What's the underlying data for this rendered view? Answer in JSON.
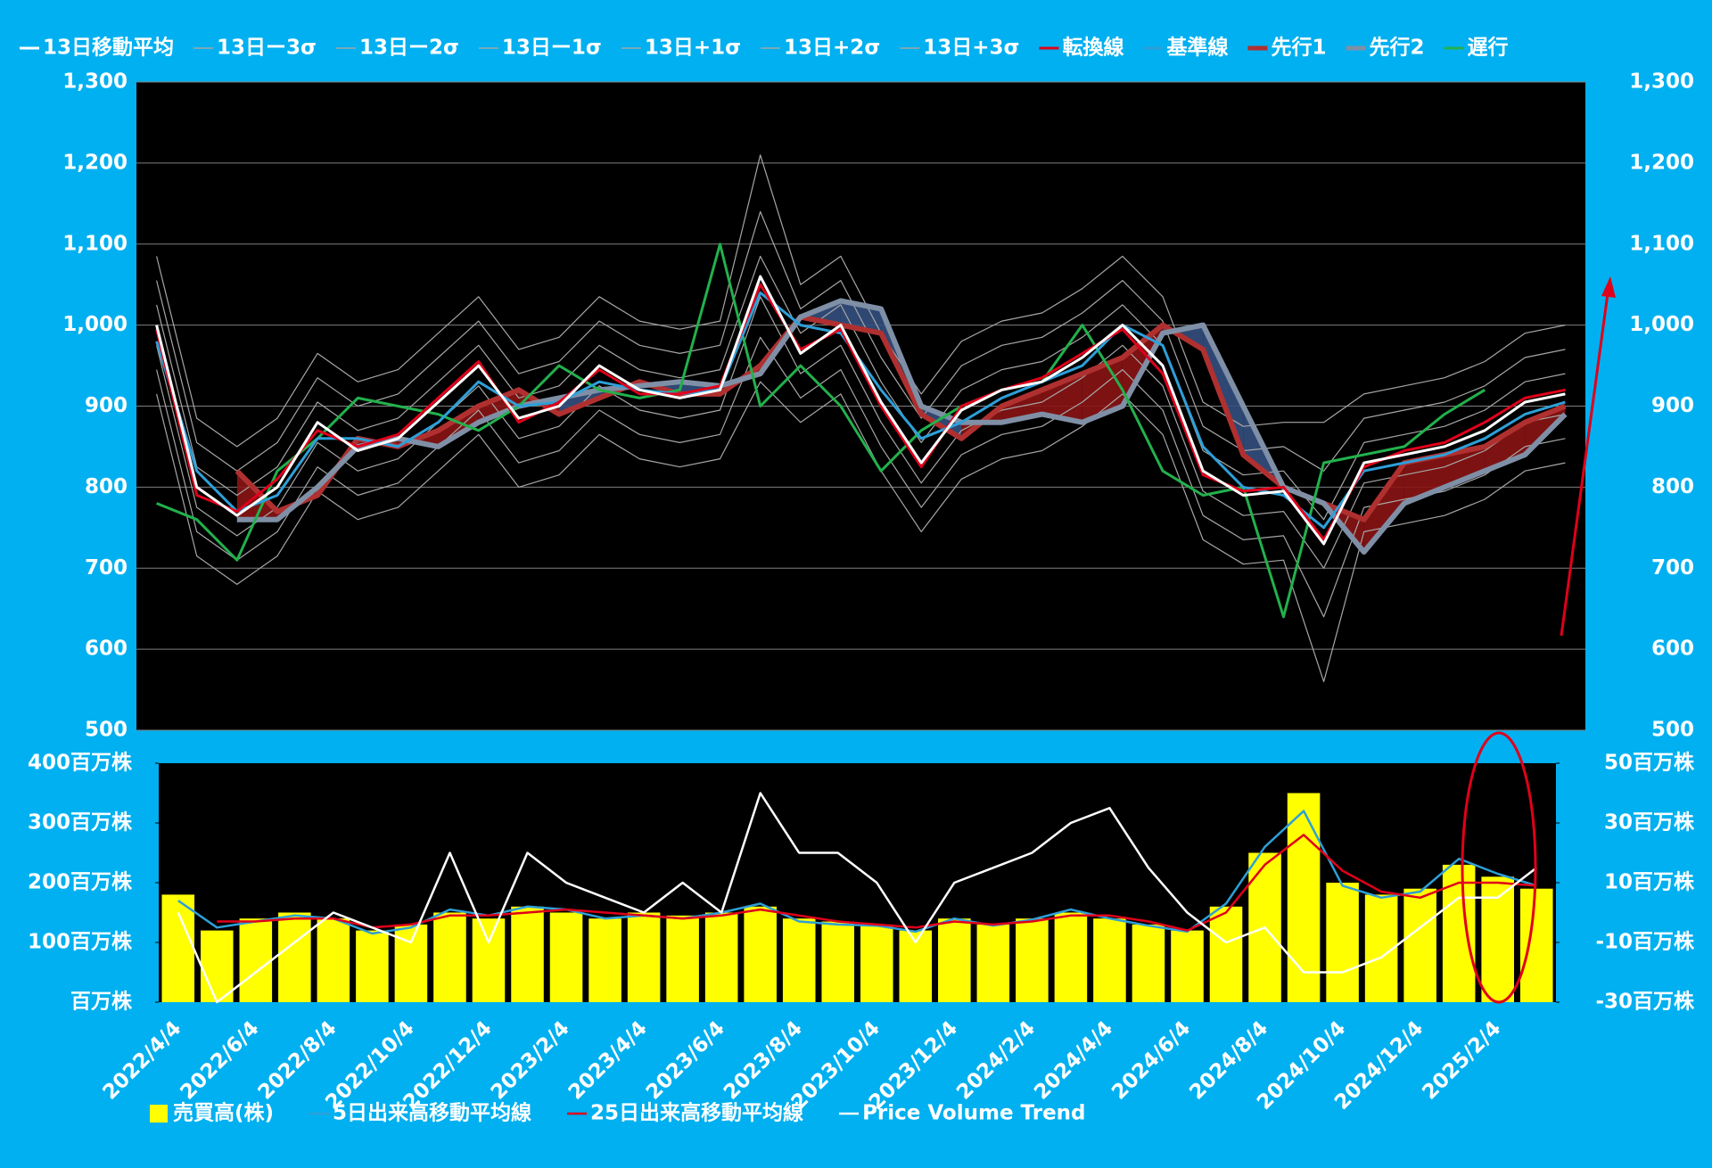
{
  "chart_data": [
    {
      "type": "line",
      "ylim": [
        500,
        1300
      ],
      "yticks": [
        500,
        600,
        700,
        800,
        900,
        {
          "value": 1000,
          "label": "1,000"
        },
        {
          "value": 1100,
          "label": "1,100"
        },
        {
          "value": 1200,
          "label": "1,200"
        },
        {
          "value": 1300,
          "label": "1,300"
        }
      ],
      "grid": true,
      "legend": "top",
      "series": [
        {
          "name": "13日移動平均",
          "color": "#ffffff",
          "values": [
            1000,
            800,
            765,
            800,
            880,
            845,
            860,
            905,
            950,
            885,
            900,
            950,
            920,
            910,
            920,
            1060,
            965,
            1000,
            905,
            830,
            895,
            920,
            930,
            960,
            1000,
            950,
            820,
            790,
            795,
            730,
            830,
            840,
            850,
            870,
            905,
            915
          ]
        },
        {
          "name": "13日ー3σ",
          "color": "#a6a6a6",
          "values": [
            915,
            715,
            680,
            715,
            795,
            760,
            775,
            820,
            865,
            800,
            815,
            865,
            835,
            825,
            835,
            930,
            880,
            915,
            820,
            745,
            810,
            835,
            845,
            875,
            915,
            865,
            735,
            705,
            710,
            560,
            745,
            755,
            765,
            785,
            820,
            830
          ]
        },
        {
          "name": "13日ー2σ",
          "color": "#a6a6a6",
          "values": [
            945,
            745,
            710,
            745,
            825,
            790,
            805,
            850,
            895,
            830,
            845,
            895,
            865,
            855,
            865,
            985,
            910,
            945,
            850,
            775,
            840,
            865,
            875,
            905,
            945,
            895,
            765,
            735,
            740,
            640,
            775,
            785,
            795,
            815,
            850,
            860
          ]
        },
        {
          "name": "13日ー1σ",
          "color": "#a6a6a6",
          "values": [
            975,
            775,
            740,
            775,
            855,
            820,
            835,
            880,
            925,
            860,
            875,
            925,
            895,
            885,
            895,
            1035,
            940,
            975,
            880,
            805,
            870,
            895,
            905,
            935,
            975,
            925,
            795,
            765,
            770,
            700,
            805,
            815,
            825,
            845,
            880,
            890
          ]
        },
        {
          "name": "13日+1σ",
          "color": "#a6a6a6",
          "values": [
            1025,
            825,
            790,
            825,
            905,
            870,
            885,
            930,
            975,
            910,
            925,
            975,
            945,
            935,
            945,
            1085,
            990,
            1025,
            930,
            855,
            920,
            945,
            955,
            985,
            1025,
            975,
            845,
            815,
            820,
            760,
            855,
            865,
            875,
            895,
            930,
            940
          ]
        },
        {
          "name": "13日+2σ",
          "color": "#a6a6a6",
          "values": [
            1055,
            855,
            820,
            855,
            935,
            900,
            915,
            960,
            1005,
            940,
            955,
            1005,
            975,
            965,
            975,
            1140,
            1020,
            1055,
            960,
            885,
            950,
            975,
            985,
            1015,
            1055,
            1005,
            875,
            845,
            850,
            820,
            885,
            895,
            905,
            925,
            960,
            970
          ]
        },
        {
          "name": "13日+3σ",
          "color": "#a6a6a6",
          "values": [
            1085,
            885,
            850,
            885,
            965,
            930,
            945,
            990,
            1035,
            970,
            985,
            1035,
            1005,
            995,
            1005,
            1210,
            1050,
            1085,
            990,
            915,
            980,
            1005,
            1015,
            1045,
            1085,
            1035,
            905,
            875,
            880,
            880,
            915,
            925,
            935,
            955,
            990,
            1000
          ]
        },
        {
          "name": "転換線",
          "color": "#e0001b",
          "values": [
            995,
            790,
            770,
            810,
            870,
            850,
            865,
            910,
            955,
            880,
            905,
            945,
            915,
            915,
            925,
            1050,
            970,
            995,
            900,
            825,
            900,
            920,
            935,
            965,
            995,
            940,
            815,
            795,
            800,
            735,
            825,
            845,
            855,
            880,
            910,
            920
          ]
        },
        {
          "name": "基準線",
          "color": "#2e9fd8",
          "values": [
            980,
            820,
            770,
            790,
            860,
            860,
            850,
            880,
            930,
            900,
            905,
            930,
            920,
            915,
            920,
            1040,
            1000,
            990,
            920,
            860,
            880,
            910,
            930,
            950,
            1000,
            975,
            850,
            800,
            790,
            750,
            820,
            830,
            840,
            860,
            890,
            905
          ]
        },
        {
          "name": "先行1",
          "color": "#b03030",
          "values": [
            null,
            null,
            820,
            770,
            790,
            860,
            850,
            870,
            900,
            920,
            890,
            910,
            930,
            915,
            915,
            950,
            1010,
            1000,
            990,
            890,
            860,
            900,
            920,
            940,
            960,
            1000,
            970,
            840,
            800,
            780,
            760,
            830,
            840,
            850,
            880,
            900
          ]
        },
        {
          "name": "先行2",
          "color": "#7f8fa6",
          "values": [
            null,
            null,
            760,
            760,
            800,
            850,
            860,
            850,
            880,
            900,
            910,
            920,
            925,
            930,
            925,
            940,
            1010,
            1030,
            1020,
            900,
            880,
            880,
            890,
            880,
            900,
            990,
            1000,
            900,
            800,
            780,
            720,
            780,
            800,
            820,
            840,
            890
          ]
        },
        {
          "name": "遅行",
          "color": "#22b14c",
          "values": [
            780,
            760,
            710,
            820,
            860,
            910,
            900,
            890,
            870,
            900,
            950,
            920,
            910,
            920,
            1100,
            900,
            950,
            900,
            820,
            870,
            900,
            920,
            930,
            1000,
            920,
            820,
            790,
            800,
            640,
            830,
            840,
            850,
            890,
            920,
            null,
            null
          ]
        }
      ]
    },
    {
      "type": "bar",
      "categories": [
        "2022/4/4",
        null,
        "2022/6/4",
        null,
        "2022/8/4",
        null,
        "2022/10/4",
        null,
        "2022/12/4",
        null,
        "2023/2/4",
        null,
        "2023/4/4",
        null,
        "2023/6/4",
        null,
        "2023/8/4",
        null,
        "2023/10/4",
        null,
        "2023/12/4",
        null,
        "2024/2/4",
        null,
        "2024/4/4",
        null,
        "2024/6/4",
        null,
        "2024/8/4",
        null,
        "2024/10/4",
        null,
        "2024/12/4",
        null,
        "2025/2/4",
        null
      ],
      "ylim": [
        0,
        400
      ],
      "yticks": [
        {
          "value": 0,
          "label": "百万株"
        },
        {
          "value": 100,
          "label": "100百万株"
        },
        {
          "value": 200,
          "label": "200百万株"
        },
        {
          "value": 300,
          "label": "300百万株"
        },
        {
          "value": 400,
          "label": "400百万株"
        }
      ],
      "y2lim": [
        -30,
        50
      ],
      "y2ticks": [
        {
          "value": -30,
          "label": "-30百万株"
        },
        {
          "value": -10,
          "label": "-10百万株"
        },
        {
          "value": 10,
          "label": "10百万株"
        },
        {
          "value": 30,
          "label": "30百万株"
        },
        {
          "value": 50,
          "label": "50百万株"
        }
      ],
      "legend": "bottom",
      "series": [
        {
          "name": "売買高(株)",
          "type": "bar",
          "color": "#ffff00",
          "values": [
            180,
            120,
            140,
            150,
            140,
            120,
            130,
            150,
            140,
            160,
            150,
            140,
            150,
            145,
            150,
            160,
            140,
            135,
            130,
            120,
            140,
            130,
            140,
            150,
            140,
            130,
            120,
            160,
            250,
            350,
            200,
            180,
            190,
            230,
            210,
            190
          ]
        },
        {
          "name": "5日出来高移動平均線",
          "type": "line",
          "color": "#2e9fd8",
          "values": [
            170,
            125,
            135,
            145,
            140,
            115,
            125,
            155,
            145,
            160,
            155,
            140,
            145,
            140,
            150,
            165,
            135,
            130,
            128,
            118,
            140,
            128,
            138,
            155,
            140,
            128,
            118,
            165,
            260,
            320,
            195,
            175,
            185,
            240,
            215,
            195
          ]
        },
        {
          "name": "25日出来高移動平均線",
          "type": "line",
          "color": "#e0001b",
          "values": [
            null,
            135,
            135,
            140,
            140,
            125,
            130,
            145,
            145,
            150,
            155,
            150,
            145,
            140,
            145,
            155,
            145,
            135,
            130,
            125,
            135,
            130,
            135,
            145,
            145,
            135,
            120,
            150,
            230,
            280,
            220,
            185,
            175,
            200,
            200,
            195
          ]
        },
        {
          "name": "Price Volume Trend",
          "type": "line",
          "axis": "y2",
          "color": "#ffffff",
          "values": [
            0,
            -30,
            -20,
            -10,
            0,
            -5,
            -10,
            20,
            -10,
            20,
            10,
            5,
            0,
            10,
            0,
            40,
            20,
            20,
            10,
            -10,
            10,
            15,
            20,
            30,
            35,
            15,
            0,
            -10,
            -5,
            -20,
            -20,
            -15,
            -5,
            5,
            5,
            15
          ]
        }
      ]
    }
  ]
}
